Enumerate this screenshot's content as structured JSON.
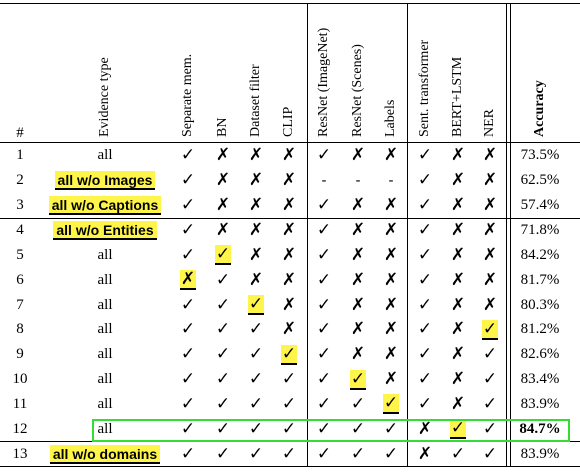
{
  "table": {
    "columns": [
      {
        "key": "num",
        "label": "#"
      },
      {
        "key": "evidence",
        "label": "Evidence type"
      },
      {
        "key": "sep",
        "label": "Separate mem."
      },
      {
        "key": "bn",
        "label": "BN"
      },
      {
        "key": "filter",
        "label": "Dataset filter"
      },
      {
        "key": "clip",
        "label": "CLIP"
      },
      {
        "key": "rnin",
        "label": "ResNet (ImageNet)"
      },
      {
        "key": "rnsc",
        "label": "ResNet (Scenes)"
      },
      {
        "key": "labels",
        "label": "Labels"
      },
      {
        "key": "st",
        "label": "Sent. transformer"
      },
      {
        "key": "bert",
        "label": "BERT+LSTM"
      },
      {
        "key": "ner",
        "label": "NER"
      },
      {
        "key": "acc",
        "label": "Accuracy"
      }
    ],
    "rows": [
      {
        "num": "1",
        "evidence": "all",
        "evidence_highlight": false,
        "marks": [
          "✓",
          "✗",
          "✗",
          "✗",
          "✓",
          "✗",
          "✗",
          "✓",
          "✗",
          "✗"
        ],
        "highlight": [],
        "accuracy": "73.5%",
        "bold_accuracy": false
      },
      {
        "num": "2",
        "evidence": "all w/o Images",
        "evidence_highlight": true,
        "marks": [
          "✓",
          "✗",
          "✗",
          "✗",
          "-",
          "-",
          "-",
          "✓",
          "✗",
          "✗"
        ],
        "highlight": [],
        "accuracy": "62.5%",
        "bold_accuracy": false
      },
      {
        "num": "3",
        "evidence": "all w/o Captions",
        "evidence_highlight": true,
        "marks": [
          "✓",
          "✗",
          "✗",
          "✗",
          "✓",
          "✗",
          "✗",
          "✓",
          "✗",
          "✗"
        ],
        "highlight": [],
        "accuracy": "57.4%",
        "bold_accuracy": false
      },
      {
        "num": "4",
        "evidence": "all w/o Entities",
        "evidence_highlight": true,
        "marks": [
          "✓",
          "✗",
          "✗",
          "✗",
          "✓",
          "✗",
          "✗",
          "✓",
          "✗",
          "✗"
        ],
        "highlight": [],
        "accuracy": "71.8%",
        "bold_accuracy": false
      },
      {
        "num": "5",
        "evidence": "all",
        "evidence_highlight": false,
        "marks": [
          "✓",
          "✓",
          "✗",
          "✗",
          "✓",
          "✗",
          "✗",
          "✓",
          "✗",
          "✗"
        ],
        "highlight": [
          1
        ],
        "accuracy": "84.2%",
        "bold_accuracy": false
      },
      {
        "num": "6",
        "evidence": "all",
        "evidence_highlight": false,
        "marks": [
          "✗",
          "✓",
          "✗",
          "✗",
          "✓",
          "✗",
          "✗",
          "✓",
          "✗",
          "✗"
        ],
        "highlight": [
          0
        ],
        "accuracy": "81.7%",
        "bold_accuracy": false
      },
      {
        "num": "7",
        "evidence": "all",
        "evidence_highlight": false,
        "marks": [
          "✓",
          "✓",
          "✓",
          "✗",
          "✓",
          "✗",
          "✗",
          "✓",
          "✗",
          "✗"
        ],
        "highlight": [
          2
        ],
        "accuracy": "80.3%",
        "bold_accuracy": false
      },
      {
        "num": "8",
        "evidence": "all",
        "evidence_highlight": false,
        "marks": [
          "✓",
          "✓",
          "✓",
          "✗",
          "✓",
          "✗",
          "✗",
          "✓",
          "✗",
          "✓"
        ],
        "highlight": [
          9
        ],
        "accuracy": "81.2%",
        "bold_accuracy": false
      },
      {
        "num": "9",
        "evidence": "all",
        "evidence_highlight": false,
        "marks": [
          "✓",
          "✓",
          "✓",
          "✓",
          "✓",
          "✗",
          "✗",
          "✓",
          "✗",
          "✓"
        ],
        "highlight": [
          3
        ],
        "accuracy": "82.6%",
        "bold_accuracy": false
      },
      {
        "num": "10",
        "evidence": "all",
        "evidence_highlight": false,
        "marks": [
          "✓",
          "✓",
          "✓",
          "✓",
          "✓",
          "✓",
          "✗",
          "✓",
          "✗",
          "✓"
        ],
        "highlight": [
          5
        ],
        "accuracy": "83.4%",
        "bold_accuracy": false
      },
      {
        "num": "11",
        "evidence": "all",
        "evidence_highlight": false,
        "marks": [
          "✓",
          "✓",
          "✓",
          "✓",
          "✓",
          "✓",
          "✓",
          "✓",
          "✗",
          "✓"
        ],
        "highlight": [
          6
        ],
        "accuracy": "83.9%",
        "bold_accuracy": false
      },
      {
        "num": "12",
        "evidence": "all",
        "evidence_highlight": false,
        "marks": [
          "✓",
          "✓",
          "✓",
          "✓",
          "✓",
          "✓",
          "✓",
          "✗",
          "✓",
          "✓"
        ],
        "highlight": [
          8
        ],
        "accuracy": "84.7%",
        "bold_accuracy": true
      },
      {
        "num": "13",
        "evidence": "all w/o domains",
        "evidence_highlight": true,
        "marks": [
          "✓",
          "✓",
          "✓",
          "✓",
          "✓",
          "✓",
          "✓",
          "✗",
          "✓",
          "✓"
        ],
        "highlight": [],
        "accuracy": "83.9%",
        "bold_accuracy": false
      }
    ],
    "best_row_num": "12",
    "best_row_border_color": "#33dd33",
    "highlight_color": "#fff54a"
  }
}
